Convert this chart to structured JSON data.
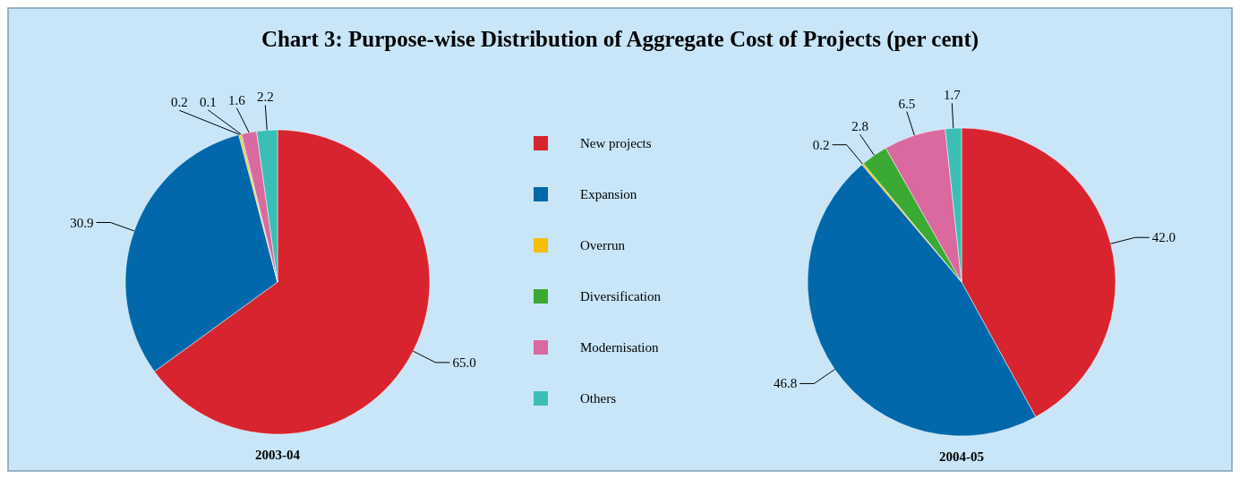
{
  "chart_data": [
    {
      "type": "pie",
      "title": "Chart 3: Purpose-wise Distribution of Aggregate Cost of Projects (per cent)",
      "xlabel": "2003-04",
      "categories": [
        "New projects",
        "Expansion",
        "Overrun",
        "Diversification",
        "Modernisation",
        "Others"
      ],
      "values": [
        65.0,
        30.9,
        0.2,
        0.1,
        1.6,
        2.2
      ],
      "value_labels": [
        "65.0",
        "30.9",
        "0.2",
        "0.1",
        "1.6",
        "2.2"
      ],
      "colors": [
        "#d7242e",
        "#0068ab",
        "#f5c000",
        "#3aaa35",
        "#d9699e",
        "#3bbfb5"
      ],
      "legend": "right"
    },
    {
      "type": "pie",
      "xlabel": "2004-05",
      "categories": [
        null,
        null,
        null,
        null,
        null,
        null
      ],
      "values": [
        42.0,
        46.8,
        0.2,
        2.8,
        6.5,
        1.7
      ],
      "value_labels": [
        "42.0",
        "46.8",
        "0.2",
        "2.8",
        "6.5",
        "1.7"
      ],
      "colors": [
        "#d7242e",
        "#0068ab",
        "#f5c000",
        "#3aaa35",
        "#d9699e",
        "#3bbfb5"
      ]
    }
  ]
}
